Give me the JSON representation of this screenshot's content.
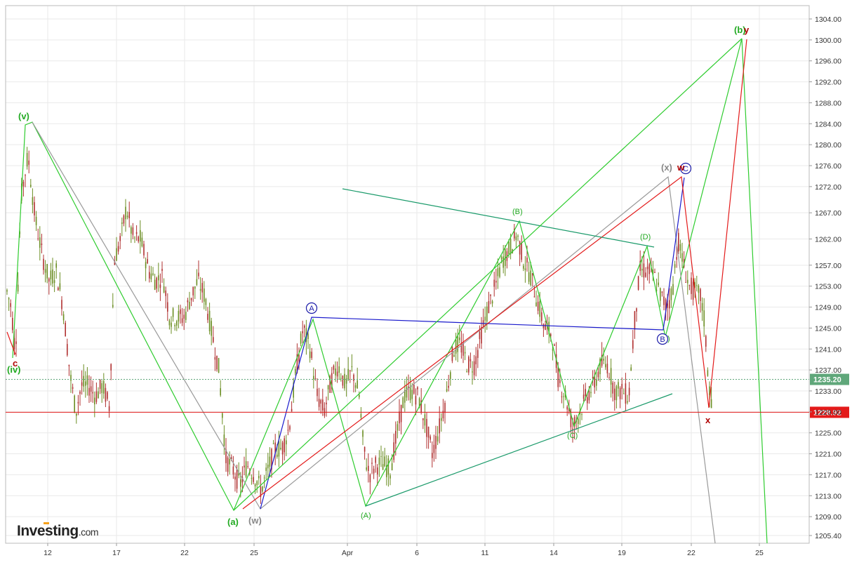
{
  "chart_data": {
    "type": "candlestick",
    "y_axis": {
      "ticks": [
        "1304.00",
        "1300.00",
        "1296.00",
        "1292.00",
        "1288.00",
        "1284.00",
        "1280.00",
        "1276.00",
        "1272.00",
        "1267.00",
        "1262.00",
        "1257.00",
        "1253.00",
        "1249.00",
        "1245.00",
        "1241.00",
        "1237.00",
        "1233.00",
        "1229.00",
        "1225.00",
        "1221.00",
        "1217.00",
        "1213.00",
        "1209.00",
        "1205.40"
      ],
      "range": [
        1204.0,
        1306.0
      ],
      "position": "right"
    },
    "x_axis": {
      "ticks": [
        "12",
        "17",
        "22",
        "25",
        "Apr",
        "6",
        "11",
        "14",
        "19",
        "22",
        "25"
      ]
    },
    "grid": true,
    "price_markers": [
      {
        "label": "1235.20",
        "value": 1235.2,
        "color": "#5fa77a",
        "line": "dotted"
      },
      {
        "label": "1228.92",
        "value": 1228.92,
        "color": "#e31a1a",
        "line": "solid"
      }
    ],
    "series": [
      {
        "color": "#c0392b",
        "description_values": "OHLC price bars"
      }
    ],
    "wave_labels": [
      {
        "text": "(v)",
        "color": "#22aa22"
      },
      {
        "text": "(iv)",
        "color": "#22aa22"
      },
      {
        "text": "c",
        "color": "#b00000"
      },
      {
        "text": "(a)",
        "color": "#22aa22"
      },
      {
        "text": "(w)",
        "color": "#888888"
      },
      {
        "text": "A",
        "color": "#1a1aa8"
      },
      {
        "text": "(A)",
        "color": "#22aa22"
      },
      {
        "text": "(B)",
        "color": "#22aa22"
      },
      {
        "text": "(C)",
        "color": "#22aa22"
      },
      {
        "text": "(D)",
        "color": "#22aa22"
      },
      {
        "text": "(E)",
        "color": "#22aa22"
      },
      {
        "text": "B",
        "color": "#1a1aa8"
      },
      {
        "text": "C",
        "color": "#1a1aa8"
      },
      {
        "text": "(x)",
        "color": "#888888"
      },
      {
        "text": "w",
        "color": "#b00000"
      },
      {
        "text": "x",
        "color": "#b00000"
      },
      {
        "text": "(b)",
        "color": "#22aa22"
      },
      {
        "text": "y",
        "color": "#b00000"
      }
    ]
  },
  "branding": {
    "logo_text": "Investing",
    "logo_domain": ".com"
  },
  "colors": {
    "candle_up": "#6b8e23",
    "candle_down": "#b03030",
    "bright_green": "#2ecc2e",
    "teal": "#1a9a6a",
    "blue": "#1a1acc",
    "red": "#e31a1a",
    "grey": "#999999"
  }
}
